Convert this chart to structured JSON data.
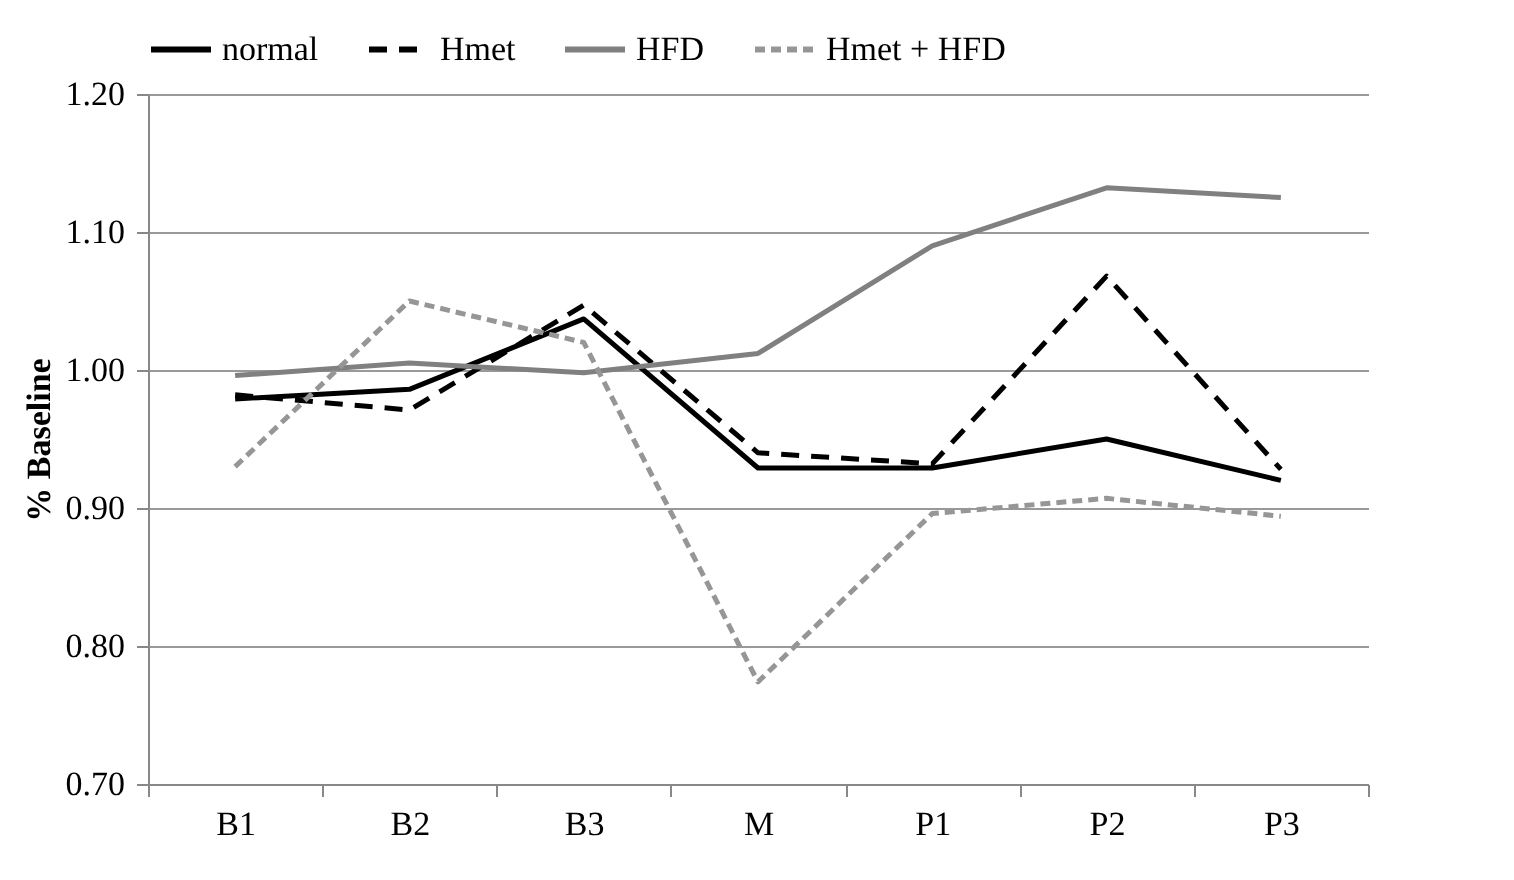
{
  "chart_data": {
    "type": "line",
    "ylabel": "% Baseline",
    "categories": [
      "B1",
      "B2",
      "B3",
      "M",
      "P1",
      "P2",
      "P3"
    ],
    "series": [
      {
        "name": "normal",
        "color": "#000000",
        "line_style": "solid",
        "values": [
          0.979,
          0.986,
          1.037,
          0.929,
          0.929,
          0.95,
          0.92
        ]
      },
      {
        "name": "Hmet",
        "color": "#000000",
        "line_style": "dashed",
        "values": [
          0.982,
          0.971,
          1.047,
          0.94,
          0.932,
          1.068,
          0.928
        ]
      },
      {
        "name": "HFD",
        "color": "#808080",
        "line_style": "solid",
        "values": [
          0.996,
          1.005,
          0.998,
          1.012,
          1.09,
          1.132,
          1.125
        ]
      },
      {
        "name": "Hmet + HFD",
        "color": "#969696",
        "line_style": "dotted",
        "values": [
          0.93,
          1.05,
          1.02,
          0.774,
          0.896,
          0.907,
          0.894
        ]
      }
    ],
    "ylim": [
      0.7,
      1.2
    ],
    "yticks": [
      {
        "value": 0.7,
        "label": "0.70"
      },
      {
        "value": 0.8,
        "label": "0.80"
      },
      {
        "value": 0.9,
        "label": "0.90"
      },
      {
        "value": 1.0,
        "label": "1.00"
      },
      {
        "value": 1.1,
        "label": "1.10"
      },
      {
        "value": 1.2,
        "label": "1.20"
      }
    ],
    "grid": "y",
    "legend": "top",
    "marker": "none"
  }
}
